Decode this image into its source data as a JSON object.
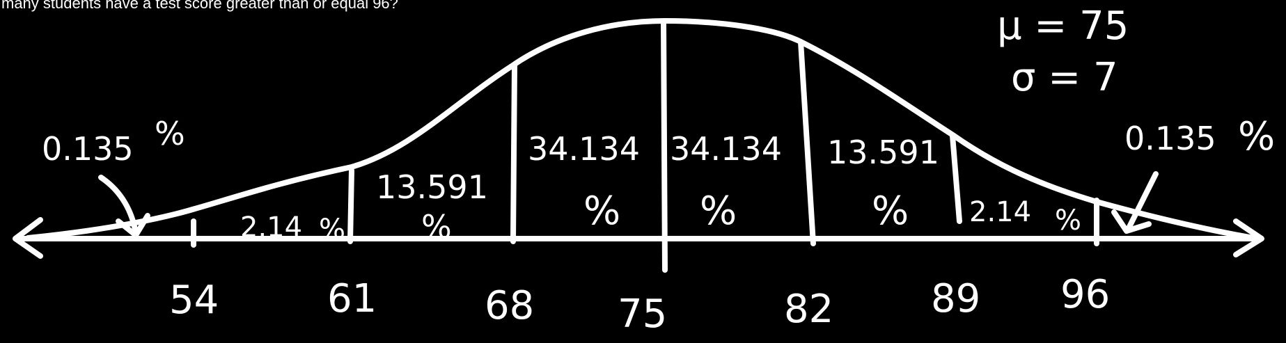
{
  "question": "many students have a test score greater than or equal 96?",
  "params": {
    "mu": "μ = 75",
    "sigma": "σ = 7"
  },
  "tick_labels": [
    "54",
    "61",
    "68",
    "75",
    "82",
    "89",
    "96"
  ],
  "regions": [
    {
      "number": "0.135",
      "percent": "%",
      "color": "#ff0000"
    },
    {
      "number": "2.14",
      "percent": "%",
      "color": "#19c81e"
    },
    {
      "number": "13.591",
      "percent": "%",
      "color": "#1a1aff"
    },
    {
      "number": "34.134",
      "percent": "%",
      "color": "#ff0000"
    },
    {
      "number": "34.134",
      "percent": "%",
      "color": "#ff0000"
    },
    {
      "number": "13.591",
      "percent": "%",
      "color": "#1a1aff"
    },
    {
      "number": "2.14",
      "percent": "%",
      "color": "#19c81e"
    },
    {
      "number": "0.135",
      "percent": "%",
      "color": "#ff0000"
    }
  ]
}
